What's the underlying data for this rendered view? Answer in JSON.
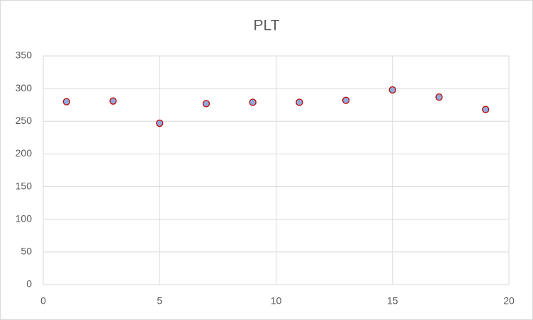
{
  "chart_data": {
    "type": "scatter",
    "title": "PLT",
    "x": [
      1,
      3,
      5,
      7,
      9,
      11,
      13,
      15,
      17,
      19
    ],
    "values": [
      280,
      281,
      247,
      277,
      279,
      279,
      282,
      298,
      287,
      268
    ],
    "color": "#8faadc",
    "edge_color": "#c00000",
    "xlim": [
      0,
      20
    ],
    "xticks": [
      0,
      5,
      10,
      15,
      20
    ],
    "ylim": [
      0,
      350
    ],
    "yticks": [
      0,
      50,
      100,
      150,
      200,
      250,
      300,
      350
    ],
    "grid": true
  }
}
